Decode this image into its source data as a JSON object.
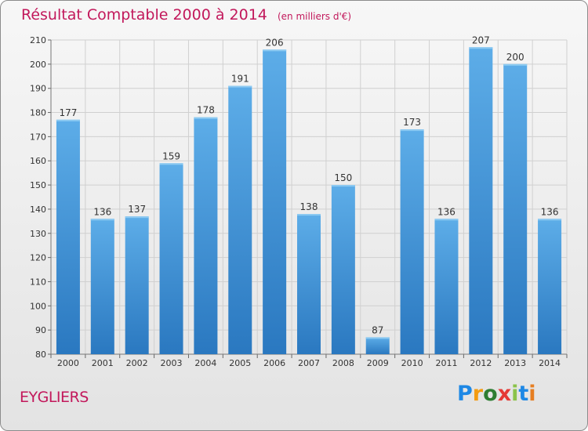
{
  "header": {
    "title": "Résultat Comptable 2000 à 2014",
    "unit": "(en milliers d'€)"
  },
  "footer": {
    "commune": "EYGLIERS",
    "logo_text": "Proxiti",
    "logo_colors": [
      "#1e88e5",
      "#f39c12",
      "#2e7d32",
      "#e53935",
      "#8bc34a",
      "#1e88e5",
      "#e67e22"
    ]
  },
  "colors": {
    "title": "#c2185b",
    "bar_top": "#5dade8",
    "bar_bottom": "#2a78c0",
    "grid": "#d0d0d0"
  },
  "chart_data": {
    "type": "bar",
    "categories": [
      "2000",
      "2001",
      "2002",
      "2003",
      "2004",
      "2005",
      "2006",
      "2007",
      "2008",
      "2009",
      "2010",
      "2011",
      "2012",
      "2013",
      "2014"
    ],
    "values": [
      177,
      136,
      137,
      159,
      178,
      191,
      206,
      138,
      150,
      87,
      173,
      136,
      207,
      200,
      136
    ],
    "ylim": [
      80,
      210
    ],
    "yticks": [
      80,
      90,
      100,
      110,
      120,
      130,
      140,
      150,
      160,
      170,
      180,
      190,
      200,
      210
    ],
    "grid": true,
    "data_labels": true
  }
}
